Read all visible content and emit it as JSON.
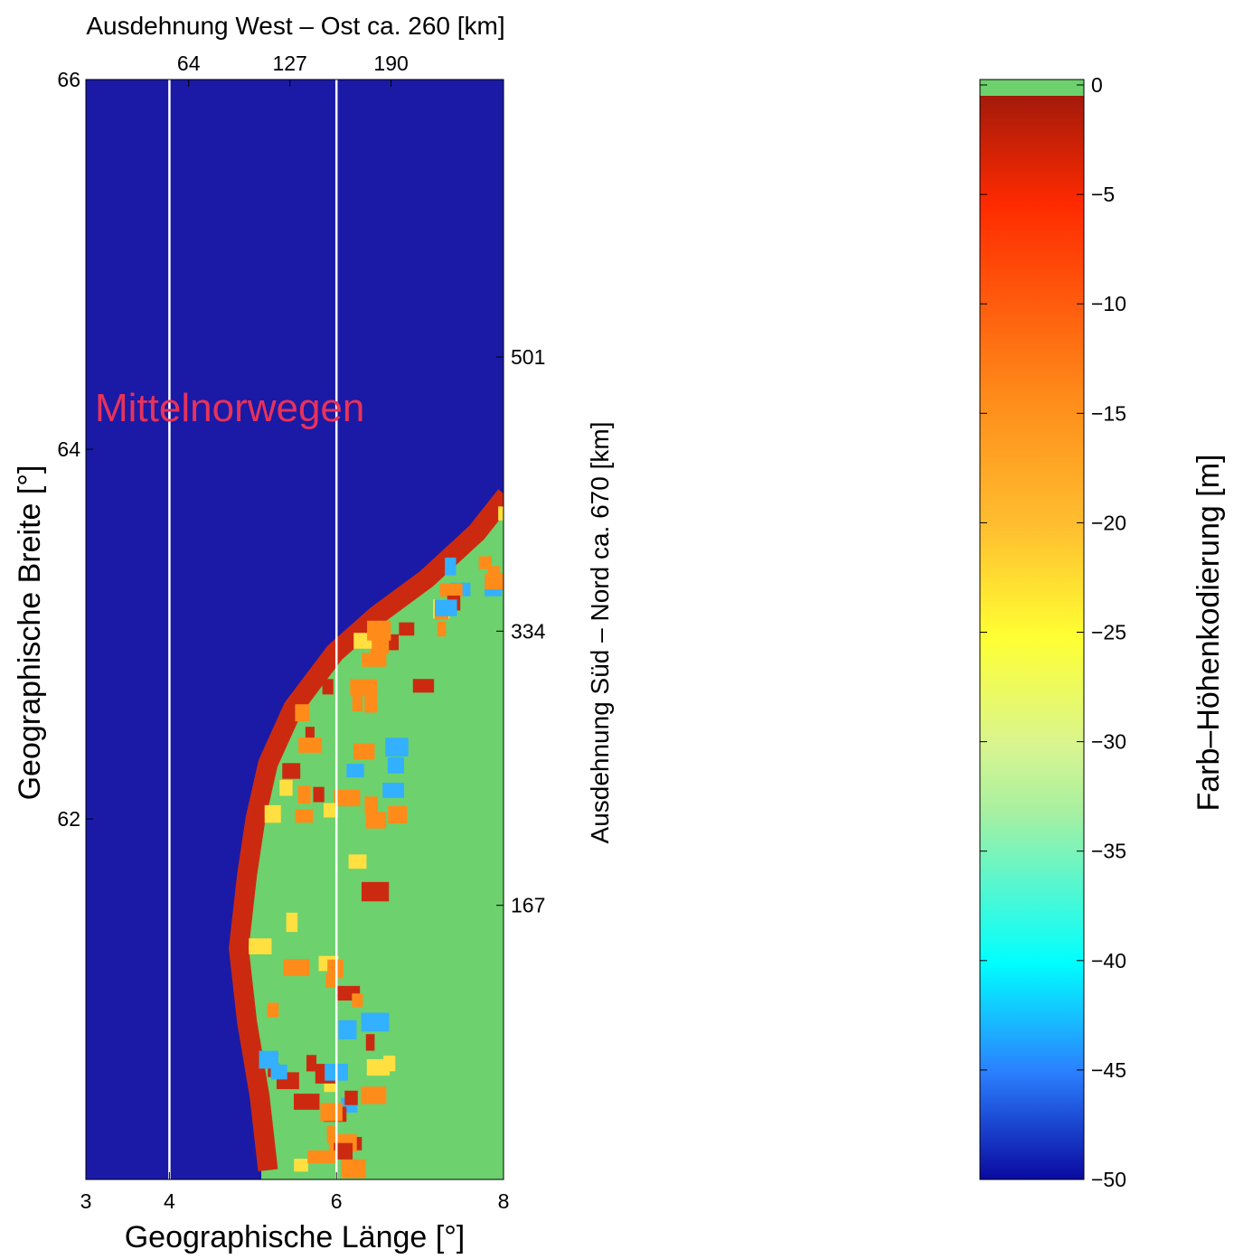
{
  "chart_data": {
    "type": "heatmap",
    "title": "Ausdehnung West – Ost ca. 260  [km]",
    "xlabel": "Geographische Länge  [°]",
    "ylabel": "Geographische Breite [°]",
    "y2label": "Ausdehnung Süd – Nord  ca. 670  [km]",
    "colorbar_label": "Farb–Höhenkodierung [m]",
    "annotation": "Mittelnorwegen",
    "annotation_color": "#e8325a",
    "xlim": [
      3,
      8
    ],
    "ylim": [
      60.05,
      66
    ],
    "x_ticks": [
      "3",
      "4",
      "6",
      "8"
    ],
    "y_ticks": [
      "62",
      "64",
      "66"
    ],
    "x2_ticks": [
      "64",
      "127",
      "190"
    ],
    "y2_ticks": [
      "167",
      "334",
      "501"
    ],
    "colorbar_ticks": [
      "0",
      "−5",
      "−10",
      "−15",
      "−20",
      "−25",
      "−30",
      "−35",
      "−40",
      "−45",
      "−50"
    ],
    "clim": [
      -50,
      0
    ],
    "land_color": "#6dd16d",
    "sea_color": "#1a1aa6",
    "vertical_lines_at_longitude": [
      4,
      6
    ],
    "coast_profile": [
      {
        "lat": 60.1,
        "lon": 5.1
      },
      {
        "lat": 60.5,
        "lon": 5.0
      },
      {
        "lat": 60.9,
        "lon": 4.85
      },
      {
        "lat": 61.3,
        "lon": 4.75
      },
      {
        "lat": 61.7,
        "lon": 4.85
      },
      {
        "lat": 62.0,
        "lon": 4.95
      },
      {
        "lat": 62.3,
        "lon": 5.1
      },
      {
        "lat": 62.6,
        "lon": 5.4
      },
      {
        "lat": 62.9,
        "lon": 5.9
      },
      {
        "lat": 63.1,
        "lon": 6.4
      },
      {
        "lat": 63.3,
        "lon": 7.0
      },
      {
        "lat": 63.55,
        "lon": 7.6
      },
      {
        "lat": 63.75,
        "lon": 7.95
      }
    ]
  }
}
